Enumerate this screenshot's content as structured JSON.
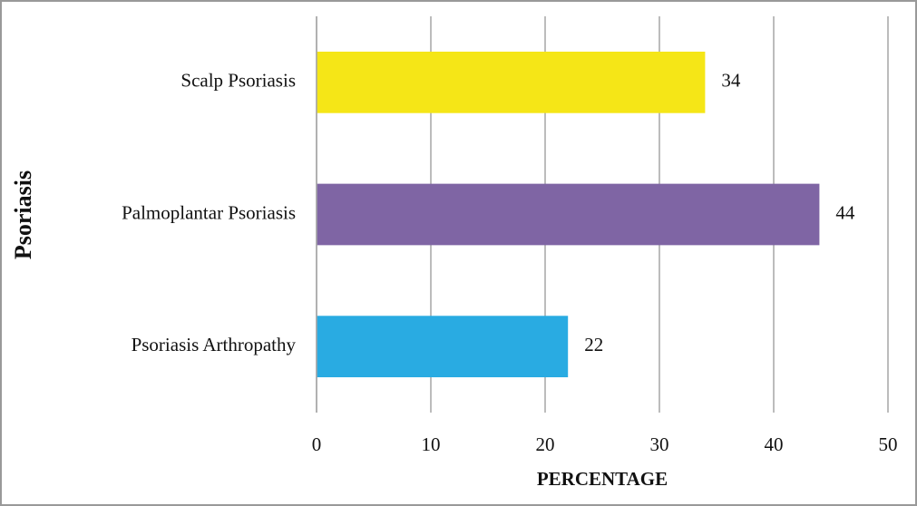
{
  "chart_data": {
    "type": "bar",
    "orientation": "horizontal",
    "categories": [
      "Scalp Psoriasis",
      "Palmoplantar Psoriasis",
      "Psoriasis Arthropathy"
    ],
    "values": [
      34,
      44,
      22
    ],
    "colors": [
      "#f5e617",
      "#7f65a4",
      "#29abe2"
    ],
    "xlabel": "PERCENTAGE",
    "ylabel": "Psoriasis",
    "xlim": [
      0,
      50
    ],
    "xticks": [
      0,
      10,
      20,
      30,
      40,
      50
    ],
    "grid": true
  }
}
